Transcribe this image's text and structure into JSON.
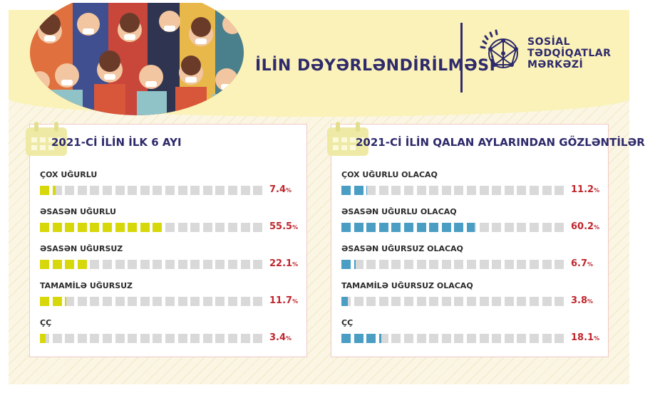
{
  "header": {
    "title": "İLİN DƏYƏRLƏNDİRİLMƏSİ",
    "org_line1": "SOSİAL",
    "org_line2": "TƏDQİQATLAR",
    "org_line3": "MƏRKƏZİ"
  },
  "colors": {
    "left_fill": "#d7d80a",
    "right_fill": "#4a9ec4",
    "empty": "#d9d9d9",
    "value": "#c0262d",
    "title": "#2e2a6b"
  },
  "chart_data": [
    {
      "type": "bar",
      "title": "2021-Cİ İLİN İLK 6 AYI",
      "categories": [
        "ÇOX UĞURLU",
        "ƏSASƏN UĞURLU",
        "ƏSASƏN UĞURSUZ",
        "TAMAMİLƏ UĞURSUZ",
        "ÇÇ"
      ],
      "values": [
        7.4,
        55.5,
        22.1,
        11.7,
        3.4
      ],
      "value_labels": [
        "7.4",
        "55.5",
        "22.1",
        "11.7",
        "3.4"
      ],
      "unit": "%",
      "ylim": [
        0,
        100
      ]
    },
    {
      "type": "bar",
      "title": "2021-Cİ İLİN QALAN AYLARINDAN GÖZLƏNTİLƏR",
      "categories": [
        "ÇOX UĞURLU OLACAQ",
        "ƏSASƏN UĞURLU OLACAQ",
        "ƏSASƏN UĞURSUZ OLACAQ",
        "TAMAMİLƏ UĞURSUZ OLACAQ",
        "ÇÇ"
      ],
      "values": [
        11.2,
        60.2,
        6.7,
        3.8,
        18.1
      ],
      "value_labels": [
        "11.2",
        "60.2",
        "6.7",
        "3.8",
        "18.1"
      ],
      "unit": "%",
      "ylim": [
        0,
        100
      ]
    }
  ]
}
